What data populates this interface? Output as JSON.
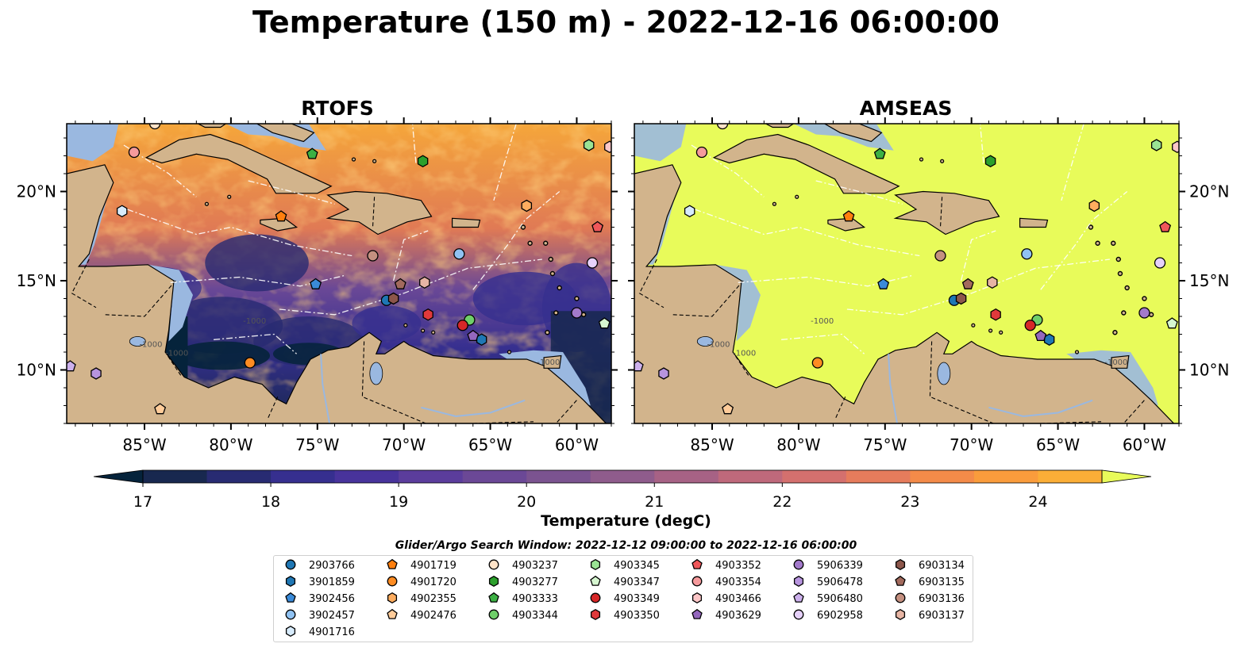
{
  "title": "Temperature (150 m) - 2022-12-16 06:00:00",
  "panels": [
    {
      "title": "RTOFS",
      "field": "warm-mixed"
    },
    {
      "title": "AMSEAS",
      "field": "uniform-warm"
    }
  ],
  "colors": {
    "land": "#d2b48c",
    "shelf": "#9ab8e0",
    "amseas_fill": "#e8fb5a",
    "contour": "#555555",
    "eez": "#ffffff"
  },
  "chart_data": {
    "type": "heatmap",
    "x_axis": {
      "range": [
        -89.5,
        -58.0
      ],
      "ticks": [
        -85,
        -80,
        -75,
        -70,
        -65,
        -60
      ],
      "tick_labels": [
        "85°W",
        "80°W",
        "75°W",
        "70°W",
        "65°W",
        "60°W"
      ]
    },
    "y_axis": {
      "range": [
        7.0,
        23.8
      ],
      "ticks": [
        10,
        15,
        20
      ],
      "tick_labels": [
        "10°N",
        "15°N",
        "20°N"
      ]
    },
    "contour_label": "-1000",
    "colorbar": {
      "label": "Temperature (degC)",
      "min": 17.0,
      "max": 24.5,
      "step": 0.5,
      "extend": "both",
      "ticks": [
        17,
        18,
        19,
        20,
        21,
        22,
        23,
        24
      ],
      "tick_labels": [
        "17",
        "18",
        "19",
        "20",
        "21",
        "22",
        "23",
        "24"
      ],
      "colors": [
        "#05233b",
        "#18284f",
        "#282b72",
        "#362f8f",
        "#48339b",
        "#5b3d9c",
        "#6b4896",
        "#7b5390",
        "#8f5c8c",
        "#a76285",
        "#bf697b",
        "#d4706e",
        "#e67c5c",
        "#f48b49",
        "#fa9c3c",
        "#fbae37",
        "#f7c63e",
        "#eedf4a",
        "#e8fb5a"
      ]
    },
    "legend": {
      "title": "Glider/Argo Search Window: 2022-12-12 09:00:00 to 2022-12-16 06:00:00",
      "columns": [
        [
          {
            "id": "2903766",
            "color": "#1f77b4",
            "shape": "circle"
          },
          {
            "id": "3901859",
            "color": "#1f77b4",
            "shape": "hexagon"
          },
          {
            "id": "3902456",
            "color": "#3a8ad8",
            "shape": "pentagon"
          },
          {
            "id": "3902457",
            "color": "#90c2f2",
            "shape": "circle"
          },
          {
            "id": "4901716",
            "color": "#d7ebfb",
            "shape": "hexagon"
          }
        ],
        [
          {
            "id": "4901719",
            "color": "#ff7f0e",
            "shape": "pentagon"
          },
          {
            "id": "4901720",
            "color": "#ff8c22",
            "shape": "circle"
          },
          {
            "id": "4902355",
            "color": "#ffad5f",
            "shape": "hexagon"
          },
          {
            "id": "4902476",
            "color": "#ffcc9a",
            "shape": "pentagon"
          }
        ],
        [
          {
            "id": "4903237",
            "color": "#ffe3c8",
            "shape": "circle"
          },
          {
            "id": "4903277",
            "color": "#2ca02c",
            "shape": "hexagon"
          },
          {
            "id": "4903333",
            "color": "#3cb043",
            "shape": "pentagon"
          },
          {
            "id": "4903344",
            "color": "#6fcf6a",
            "shape": "circle"
          }
        ],
        [
          {
            "id": "4903345",
            "color": "#9ae394",
            "shape": "hexagon"
          },
          {
            "id": "4903347",
            "color": "#d6f6d0",
            "shape": "pentagon"
          },
          {
            "id": "4903349",
            "color": "#d62728",
            "shape": "circle"
          },
          {
            "id": "4903350",
            "color": "#e0393b",
            "shape": "hexagon"
          }
        ],
        [
          {
            "id": "4903352",
            "color": "#f0575a",
            "shape": "pentagon"
          },
          {
            "id": "4903354",
            "color": "#f59a9c",
            "shape": "circle"
          },
          {
            "id": "4903466",
            "color": "#fcc6c7",
            "shape": "hexagon"
          },
          {
            "id": "4903629",
            "color": "#9467bd",
            "shape": "pentagon"
          }
        ],
        [
          {
            "id": "5906339",
            "color": "#a37acb",
            "shape": "circle"
          },
          {
            "id": "5906478",
            "color": "#b794de",
            "shape": "hexagon"
          },
          {
            "id": "5906480",
            "color": "#ccb0ec",
            "shape": "pentagon"
          },
          {
            "id": "6902958",
            "color": "#e6d1fa",
            "shape": "circle"
          }
        ],
        [
          {
            "id": "6903134",
            "color": "#8c564b",
            "shape": "hexagon"
          },
          {
            "id": "6903135",
            "color": "#a26a5d",
            "shape": "pentagon"
          },
          {
            "id": "6903136",
            "color": "#c49080",
            "shape": "circle"
          },
          {
            "id": "6903137",
            "color": "#e7b5a4",
            "shape": "hexagon"
          }
        ]
      ]
    },
    "floats": [
      {
        "id": "2903766",
        "lon": -71.0,
        "lat": 13.9
      },
      {
        "id": "3901859",
        "lon": -65.5,
        "lat": 11.7
      },
      {
        "id": "3902456",
        "lon": -75.1,
        "lat": 14.8
      },
      {
        "id": "3902457",
        "lon": -66.8,
        "lat": 16.5
      },
      {
        "id": "4901716",
        "lon": -86.3,
        "lat": 18.9
      },
      {
        "id": "4901719",
        "lon": -77.1,
        "lat": 18.6
      },
      {
        "id": "4901720",
        "lon": -78.9,
        "lat": 10.4
      },
      {
        "id": "4902355",
        "lon": -62.9,
        "lat": 19.2
      },
      {
        "id": "4902476",
        "lon": -84.1,
        "lat": 7.8
      },
      {
        "id": "4903237",
        "lon": -84.4,
        "lat": 23.8
      },
      {
        "id": "4903277",
        "lon": -68.9,
        "lat": 21.7
      },
      {
        "id": "4903333",
        "lon": -75.3,
        "lat": 22.1
      },
      {
        "id": "4903344",
        "lon": -66.2,
        "lat": 12.8
      },
      {
        "id": "4903345",
        "lon": -59.3,
        "lat": 22.6
      },
      {
        "id": "4903347",
        "lon": -58.4,
        "lat": 12.6
      },
      {
        "id": "4903349",
        "lon": -66.6,
        "lat": 12.5
      },
      {
        "id": "4903350",
        "lon": -68.6,
        "lat": 13.1
      },
      {
        "id": "4903352",
        "lon": -58.8,
        "lat": 18.0
      },
      {
        "id": "4903354",
        "lon": -85.6,
        "lat": 22.2
      },
      {
        "id": "4903466",
        "lon": -58.1,
        "lat": 22.5
      },
      {
        "id": "4903629",
        "lon": -66.0,
        "lat": 11.9
      },
      {
        "id": "5906339",
        "lon": -60.0,
        "lat": 13.2
      },
      {
        "id": "5906478",
        "lon": -87.8,
        "lat": 9.8
      },
      {
        "id": "5906480",
        "lon": -89.3,
        "lat": 10.2
      },
      {
        "id": "6902958",
        "lon": -59.1,
        "lat": 16.0
      },
      {
        "id": "6903134",
        "lon": -70.6,
        "lat": 14.0
      },
      {
        "id": "6903135",
        "lon": -70.2,
        "lat": 14.8
      },
      {
        "id": "6903136",
        "lon": -71.8,
        "lat": 16.4
      },
      {
        "id": "6903137",
        "lon": -68.8,
        "lat": 14.9
      }
    ]
  }
}
